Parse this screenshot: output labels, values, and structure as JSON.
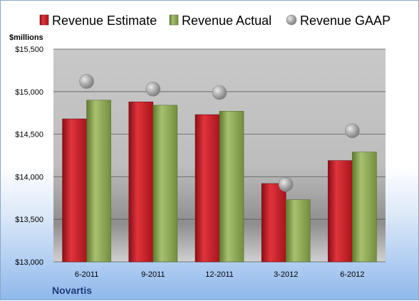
{
  "chart_data": {
    "type": "bar",
    "company": "Novartis",
    "unit_label": "$millions",
    "categories": [
      "6-2011",
      "9-2011",
      "12-2011",
      "3-2012",
      "6-2012"
    ],
    "series": [
      {
        "name": "Revenue Estimate",
        "kind": "bar",
        "color": "#c0202a",
        "values": [
          14680,
          14880,
          14730,
          13920,
          14190
        ]
      },
      {
        "name": "Revenue Actual",
        "kind": "bar",
        "color": "#8da858",
        "values": [
          14900,
          14840,
          14770,
          13730,
          14290
        ]
      },
      {
        "name": "Revenue GAAP",
        "kind": "scatter",
        "color": "#a8a8a8",
        "values": [
          15120,
          15030,
          14990,
          13910,
          14540
        ]
      }
    ],
    "y_ticks": [
      13000,
      13500,
      14000,
      14500,
      15000,
      15500
    ],
    "y_tick_labels": [
      "$13,000",
      "$13,500",
      "$14,000",
      "$14,500",
      "$15,000",
      "$15,500"
    ],
    "ylim": [
      13000,
      15500
    ],
    "grid": true,
    "legend_position": "top"
  }
}
